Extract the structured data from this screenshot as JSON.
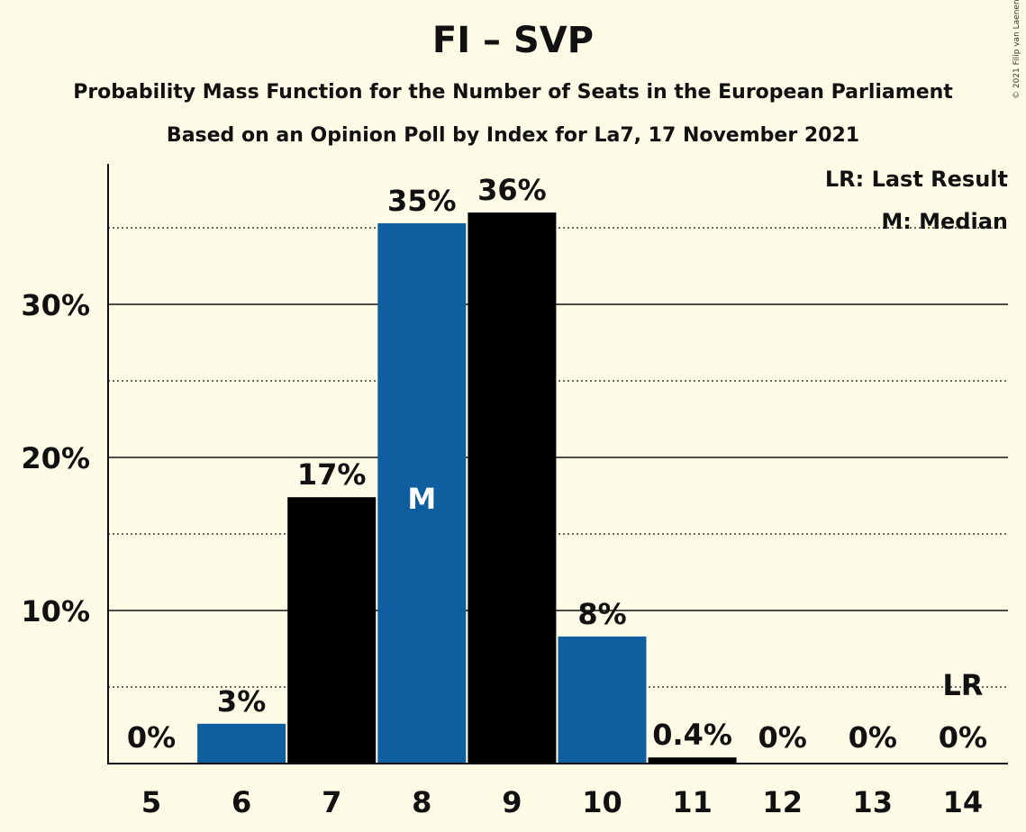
{
  "header": {
    "title": "FI – SVP",
    "subtitle1": "Probability Mass Function for the Number of Seats in the European Parliament",
    "subtitle2": "Based on an Opinion Poll by Index for La7, 17 November 2021",
    "copyright": "© 2021 Filip van Laenen"
  },
  "legend": {
    "last_result": "LR: Last Result",
    "median": "M: Median"
  },
  "chart_data": {
    "type": "bar",
    "categories": [
      "5",
      "6",
      "7",
      "8",
      "9",
      "10",
      "11",
      "12",
      "13",
      "14"
    ],
    "values": [
      0,
      2.6,
      17.4,
      35.3,
      36.0,
      8.3,
      0.4,
      0,
      0,
      0
    ],
    "labels": [
      "0%",
      "3%",
      "17%",
      "35%",
      "36%",
      "8%",
      "0.4%",
      "0%",
      "0%",
      "0%"
    ],
    "bar_colors": [
      "#0f5fa0",
      "#0f5fa0",
      "#000000",
      "#0f5fa0",
      "#000000",
      "#0f5fa0",
      "#000000",
      "#0f5fa0",
      "#000000",
      "#0f5fa0"
    ],
    "y_ticks": [
      10,
      20,
      30
    ],
    "y_tick_labels": [
      "10%",
      "20%",
      "30%"
    ],
    "y_minor_ticks": [
      5,
      15,
      25,
      35
    ],
    "ylim": [
      0,
      39.3
    ],
    "median_category": "8",
    "median_marker": "M",
    "last_result_category": "14",
    "last_result_marker": "LR",
    "grid": true,
    "legend_position": "top-right",
    "colors": {
      "background": "#fefce6",
      "blue": "#0f5fa0",
      "black": "#000000",
      "text": "#111111"
    }
  }
}
